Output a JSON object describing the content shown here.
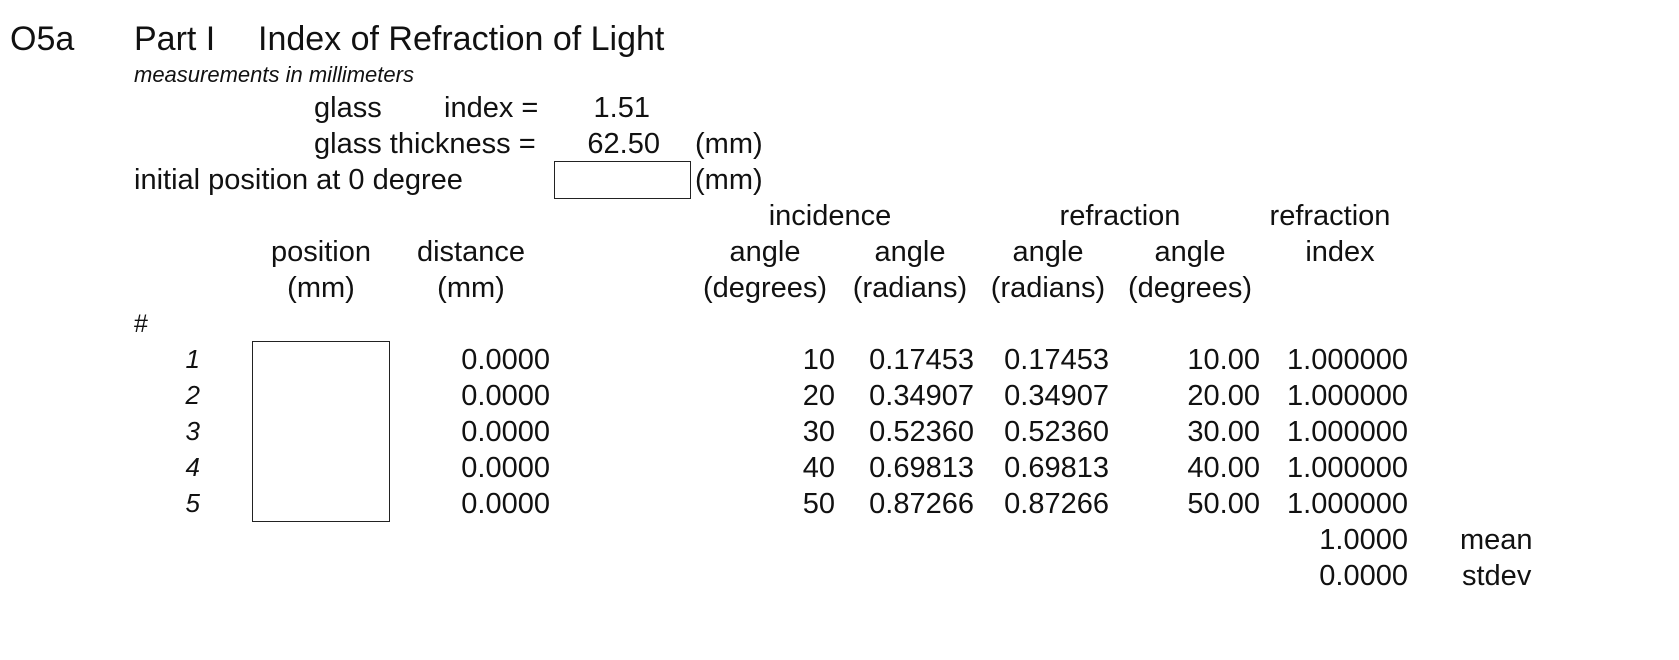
{
  "header": {
    "code": "O5a",
    "part": "Part I",
    "title": "Index of Refraction of Light",
    "subtitle": "measurements in millimeters"
  },
  "params": {
    "glass_index_label_1": "glass",
    "glass_index_label_2": "index  =",
    "glass_index_value": "1.51",
    "thickness_label": "glass thickness =",
    "thickness_value": "62.50",
    "thickness_unit": "(mm)",
    "initial_label": "initial position at 0 degree",
    "initial_value": "",
    "initial_unit": "(mm)"
  },
  "columns": {
    "incidence_group": "incidence",
    "refraction_group": "refraction",
    "refraction_index_top": "refraction",
    "position": "position",
    "position_unit": "(mm)",
    "distance": "distance",
    "distance_unit": "(mm)",
    "inc_angle_deg": "angle",
    "inc_angle_deg_unit": "(degrees)",
    "inc_angle_rad": "angle",
    "inc_angle_rad_unit": "(radians)",
    "ref_angle_rad": "angle",
    "ref_angle_rad_unit": "(radians)",
    "ref_angle_deg": "angle",
    "ref_angle_deg_unit": "(degrees)",
    "index": "index",
    "hash": "#"
  },
  "rows": [
    {
      "n": "1",
      "distance": "0.0000",
      "inc_deg": "10",
      "inc_rad": "0.17453",
      "ref_rad": "0.17453",
      "ref_deg": "10.00",
      "index": "1.000000"
    },
    {
      "n": "2",
      "distance": "0.0000",
      "inc_deg": "20",
      "inc_rad": "0.34907",
      "ref_rad": "0.34907",
      "ref_deg": "20.00",
      "index": "1.000000"
    },
    {
      "n": "3",
      "distance": "0.0000",
      "inc_deg": "30",
      "inc_rad": "0.52360",
      "ref_rad": "0.52360",
      "ref_deg": "30.00",
      "index": "1.000000"
    },
    {
      "n": "4",
      "distance": "0.0000",
      "inc_deg": "40",
      "inc_rad": "0.69813",
      "ref_rad": "0.69813",
      "ref_deg": "40.00",
      "index": "1.000000"
    },
    {
      "n": "5",
      "distance": "0.0000",
      "inc_deg": "50",
      "inc_rad": "0.87266",
      "ref_rad": "0.87266",
      "ref_deg": "50.00",
      "index": "1.000000"
    }
  ],
  "summary": {
    "mean_value": "1.0000",
    "mean_label": "mean",
    "stdev_value": "0.0000",
    "stdev_label": "stdev"
  }
}
